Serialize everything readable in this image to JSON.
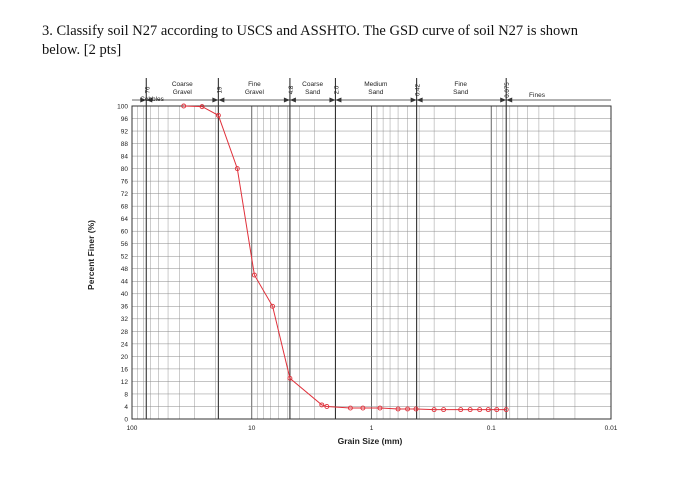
{
  "question": {
    "line1": "3. Classify soil N27 according to USCS and ASSHTO. The GSD curve of soil N27 is shown",
    "line2": "below. [2 pts]"
  },
  "chart_data": {
    "type": "line",
    "title": "",
    "xlabel": "Grain Size (mm)",
    "ylabel": "Percent Finer (%)",
    "x_scale": "log",
    "x_reversed": true,
    "xlim": [
      100,
      0.01
    ],
    "ylim": [
      0,
      100
    ],
    "x_tick_labels": [
      "100",
      "10",
      "1",
      "0.1",
      "0.01"
    ],
    "y_ticks": [
      0,
      4,
      8,
      12,
      16,
      20,
      24,
      28,
      32,
      36,
      40,
      44,
      48,
      52,
      56,
      60,
      64,
      68,
      72,
      76,
      80,
      84,
      88,
      92,
      96,
      100
    ],
    "grid": true,
    "sieve_sizes": [
      "76",
      "19",
      "4.8",
      "2.0",
      "0.42",
      "0.075"
    ],
    "zones": [
      "Cobbles",
      "Coarse\nGravel",
      "Fine\nGravel",
      "Coarse\nSand",
      "Medium\nSand",
      "Fine\nSand",
      "Fines"
    ],
    "series": [
      {
        "color": "#e0303a",
        "x": [
          37,
          26,
          19,
          13.2,
          9.5,
          6.7,
          4.8,
          2.6,
          2.36,
          1.5,
          1.18,
          0.85,
          0.6,
          0.5,
          0.425,
          0.3,
          0.25,
          0.18,
          0.15,
          0.125,
          0.106,
          0.09,
          0.075
        ],
        "y": [
          100,
          99.8,
          97,
          80,
          46,
          36,
          13,
          4.5,
          4,
          3.5,
          3.5,
          3.5,
          3.2,
          3.2,
          3.2,
          3,
          3,
          3,
          3,
          3,
          3,
          3,
          3
        ]
      }
    ]
  }
}
